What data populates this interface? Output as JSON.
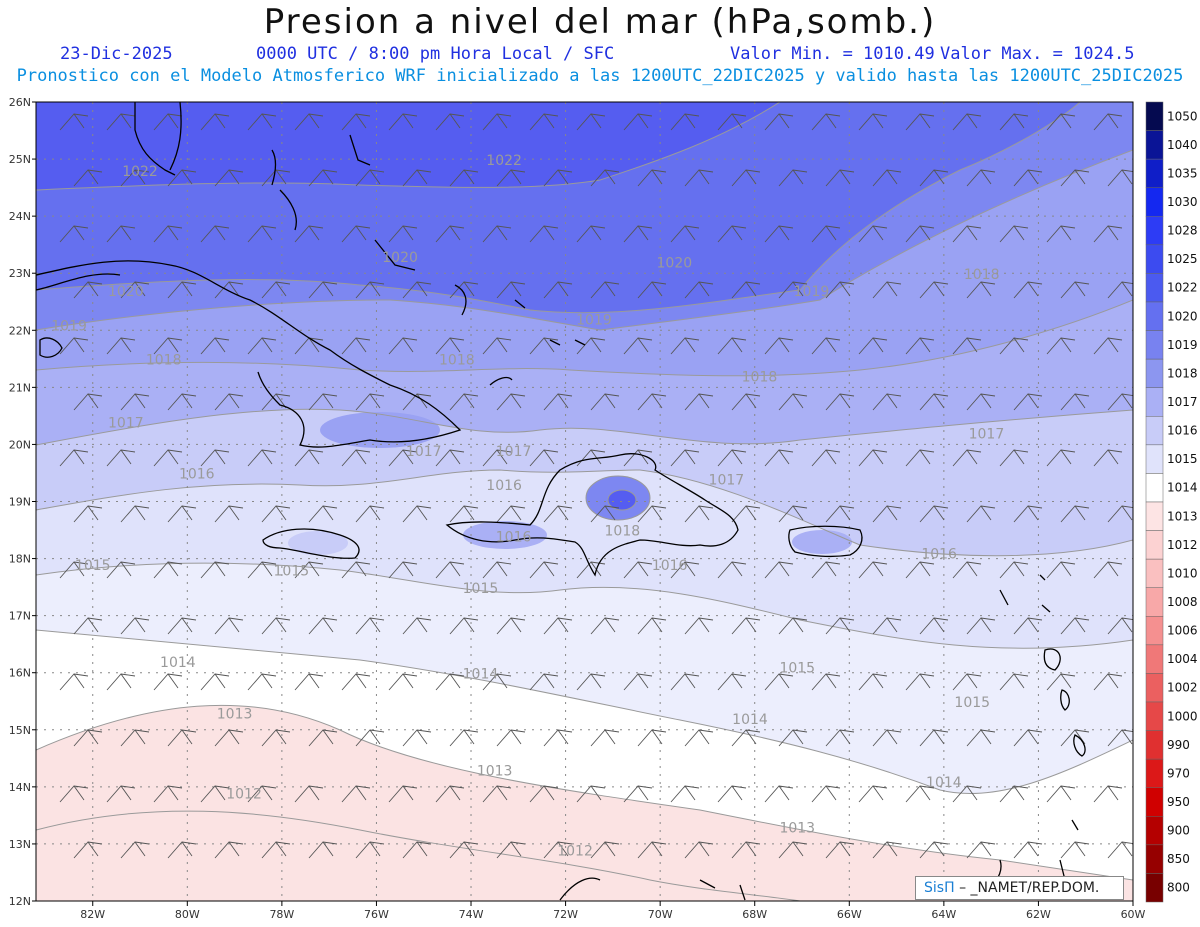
{
  "header": {
    "title": "Presion a nivel del mar (hPa,somb.)",
    "date": "23-Dic-2025",
    "time_info": "0000 UTC / 8:00 pm Hora Local / SFC",
    "valor_min": "Valor Min. = 1010.49",
    "valor_max": "Valor Max. = 1024.5",
    "subtitle": "Pronostico con el Modelo Atmosferico WRF inicializado a las 1200UTC_22DIC2025 y valido hasta las  1200UTC_25DIC2025"
  },
  "axes": {
    "x_ticks": [
      "82W",
      "80W",
      "78W",
      "76W",
      "74W",
      "72W",
      "70W",
      "68W",
      "66W",
      "64W",
      "62W",
      "60W"
    ],
    "y_ticks": [
      "26N",
      "25N",
      "24N",
      "23N",
      "22N",
      "21N",
      "20N",
      "19N",
      "18N",
      "17N",
      "16N",
      "15N",
      "14N",
      "13N",
      "12N"
    ],
    "lon_range": [
      -83.2,
      -60
    ],
    "lat_range": [
      12,
      26
    ]
  },
  "colorbar": {
    "levels": [
      "1050",
      "1040",
      "1035",
      "1030",
      "1028",
      "1025",
      "1022",
      "1020",
      "1019",
      "1018",
      "1017",
      "1016",
      "1015",
      "1014",
      "1013",
      "1012",
      "1010",
      "1008",
      "1006",
      "1004",
      "1002",
      "1000",
      "990",
      "970",
      "950",
      "900",
      "850",
      "800"
    ],
    "colors": [
      "#050a50",
      "#0a1496",
      "#0f1ec8",
      "#1428f0",
      "#2d3cf5",
      "#3c4bf0",
      "#4b5af0",
      "#6470f0",
      "#7882f0",
      "#8c96f0",
      "#aab0f5",
      "#c8ccf8",
      "#e0e3fb",
      "#ffffff",
      "#fde4e4",
      "#fcd2d2",
      "#fac0c0",
      "#f8a8a8",
      "#f59090",
      "#f07878",
      "#eb6060",
      "#e64848",
      "#e03030",
      "#dc1818",
      "#d00000",
      "#b40000",
      "#960000",
      "#780000"
    ]
  },
  "contour_labels": [
    {
      "text": "1022",
      "lon": -81.0,
      "lat": 24.7
    },
    {
      "text": "1022",
      "lon": -73.3,
      "lat": 24.9
    },
    {
      "text": "1020",
      "lon": -81.3,
      "lat": 22.6
    },
    {
      "text": "1020",
      "lon": -75.5,
      "lat": 23.2
    },
    {
      "text": "1020",
      "lon": -69.7,
      "lat": 23.1
    },
    {
      "text": "1019",
      "lon": -82.5,
      "lat": 22.0
    },
    {
      "text": "1019",
      "lon": -71.4,
      "lat": 22.1
    },
    {
      "text": "1019",
      "lon": -66.8,
      "lat": 22.6
    },
    {
      "text": "1018",
      "lon": -80.5,
      "lat": 21.4
    },
    {
      "text": "1018",
      "lon": -74.3,
      "lat": 21.4
    },
    {
      "text": "1018",
      "lon": -63.2,
      "lat": 22.9
    },
    {
      "text": "1018",
      "lon": -67.9,
      "lat": 21.1
    },
    {
      "text": "1018",
      "lon": -70.8,
      "lat": 18.4
    },
    {
      "text": "1017",
      "lon": -81.3,
      "lat": 20.3
    },
    {
      "text": "1017",
      "lon": -75.0,
      "lat": 19.8
    },
    {
      "text": "1017",
      "lon": -73.1,
      "lat": 19.8
    },
    {
      "text": "1017",
      "lon": -68.6,
      "lat": 19.3
    },
    {
      "text": "1017",
      "lon": -63.1,
      "lat": 20.1
    },
    {
      "text": "1016",
      "lon": -79.8,
      "lat": 19.4
    },
    {
      "text": "1016",
      "lon": -73.3,
      "lat": 19.2
    },
    {
      "text": "1016",
      "lon": -73.1,
      "lat": 18.3
    },
    {
      "text": "1016",
      "lon": -69.8,
      "lat": 17.8
    },
    {
      "text": "1016",
      "lon": -64.1,
      "lat": 18.0
    },
    {
      "text": "1015",
      "lon": -82.0,
      "lat": 17.8
    },
    {
      "text": "1015",
      "lon": -77.8,
      "lat": 17.7
    },
    {
      "text": "1015",
      "lon": -73.8,
      "lat": 17.4
    },
    {
      "text": "1015",
      "lon": -67.1,
      "lat": 16.0
    },
    {
      "text": "1015",
      "lon": -63.4,
      "lat": 15.4
    },
    {
      "text": "1014",
      "lon": -80.2,
      "lat": 16.1
    },
    {
      "text": "1014",
      "lon": -73.8,
      "lat": 15.9
    },
    {
      "text": "1014",
      "lon": -68.1,
      "lat": 15.1
    },
    {
      "text": "1014",
      "lon": -64.0,
      "lat": 14.0
    },
    {
      "text": "1013",
      "lon": -79.0,
      "lat": 15.2
    },
    {
      "text": "1013",
      "lon": -73.5,
      "lat": 14.2
    },
    {
      "text": "1013",
      "lon": -67.1,
      "lat": 13.2
    },
    {
      "text": "1012",
      "lon": -78.8,
      "lat": 13.8
    },
    {
      "text": "1012",
      "lon": -71.8,
      "lat": 12.8
    }
  ],
  "credit": {
    "part1": "SisΠ",
    "part2": "– _NAMET/REP.DOM."
  },
  "colors": {
    "coastline": "#000000",
    "contour": "#999999",
    "grid": "#888888",
    "barb": "#555555",
    "label": "#9a9a9a"
  }
}
